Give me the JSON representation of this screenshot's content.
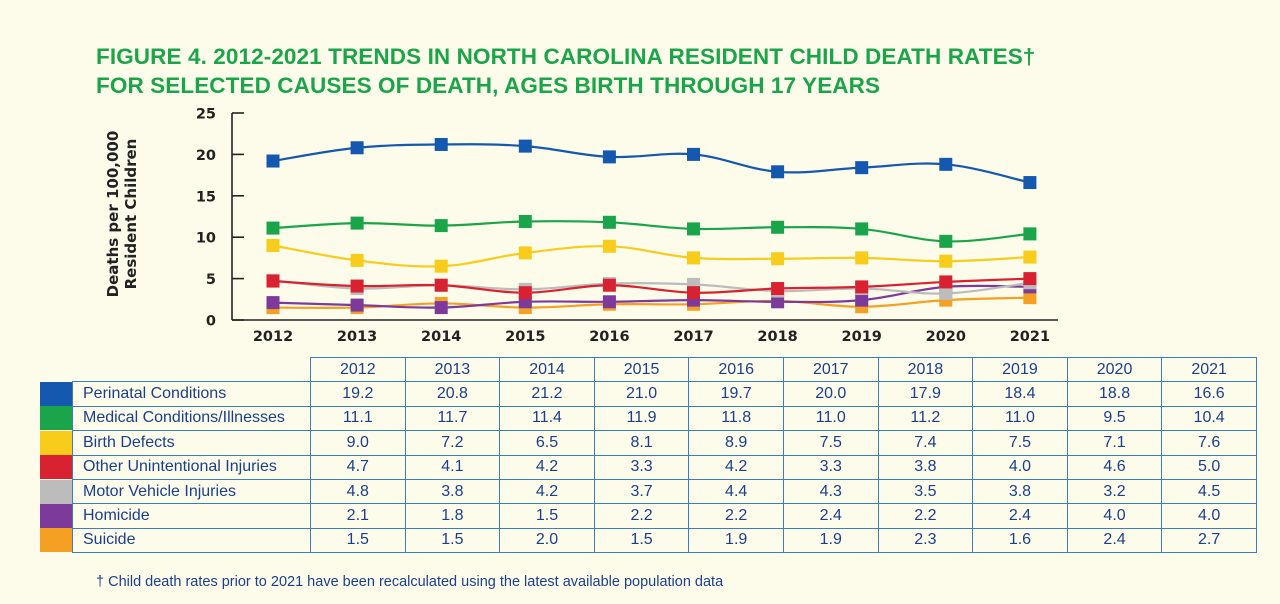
{
  "title_lines": [
    "FIGURE 4. 2012-2021 TRENDS IN NORTH CAROLINA RESIDENT CHILD DEATH RATES†",
    "FOR SELECTED CAUSES OF DEATH, AGES BIRTH THROUGH 17 YEARS"
  ],
  "footnote": "† Child death rates prior to 2021 have been recalculated using the latest available population data",
  "chart_data": {
    "type": "line",
    "ylabel": "Deaths per 100,000 Resident Children",
    "ylim": [
      0,
      25
    ],
    "yticks": [
      "0",
      "5",
      "10",
      "15",
      "20",
      "25"
    ],
    "x": [
      "2012",
      "2013",
      "2014",
      "2015",
      "2016",
      "2017",
      "2018",
      "2019",
      "2020",
      "2021"
    ],
    "grid": false,
    "series": [
      {
        "name": "Perinatal Conditions",
        "color": "#1558b0",
        "values": [
          19.2,
          20.8,
          21.2,
          21.0,
          19.7,
          20.0,
          17.9,
          18.4,
          18.8,
          16.6
        ],
        "labels": [
          "19.2",
          "20.8",
          "21.2",
          "21.0",
          "19.7",
          "20.0",
          "17.9",
          "18.4",
          "18.8",
          "16.6"
        ]
      },
      {
        "name": "Medical Conditions/Illnesses",
        "color": "#1aa54a",
        "values": [
          11.1,
          11.7,
          11.4,
          11.9,
          11.8,
          11.0,
          11.2,
          11.0,
          9.5,
          10.4
        ],
        "labels": [
          "11.1",
          "11.7",
          "11.4",
          "11.9",
          "11.8",
          "11.0",
          "11.2",
          "11.0",
          "9.5",
          "10.4"
        ]
      },
      {
        "name": "Birth Defects",
        "color": "#f8cc1b",
        "values": [
          9.0,
          7.2,
          6.5,
          8.1,
          8.9,
          7.5,
          7.4,
          7.5,
          7.1,
          7.6
        ],
        "labels": [
          "9.0",
          "7.2",
          "6.5",
          "8.1",
          "8.9",
          "7.5",
          "7.4",
          "7.5",
          "7.1",
          "7.6"
        ]
      },
      {
        "name": "Other Unintentional Injuries",
        "color": "#d92231",
        "values": [
          4.7,
          4.1,
          4.2,
          3.3,
          4.2,
          3.3,
          3.8,
          4.0,
          4.6,
          5.0
        ],
        "labels": [
          "4.7",
          "4.1",
          "4.2",
          "3.3",
          "4.2",
          "3.3",
          "3.8",
          "4.0",
          "4.6",
          "5.0"
        ]
      },
      {
        "name": "Motor Vehicle Injuries",
        "color": "#bcbcbc",
        "values": [
          4.8,
          3.8,
          4.2,
          3.7,
          4.4,
          4.3,
          3.5,
          3.8,
          3.2,
          4.5
        ],
        "labels": [
          "4.8",
          "3.8",
          "4.2",
          "3.7",
          "4.4",
          "4.3",
          "3.5",
          "3.8",
          "3.2",
          "4.5"
        ]
      },
      {
        "name": "Homicide",
        "color": "#7c3b9b",
        "values": [
          2.1,
          1.8,
          1.5,
          2.2,
          2.2,
          2.4,
          2.2,
          2.4,
          4.0,
          4.0
        ],
        "labels": [
          "2.1",
          "1.8",
          "1.5",
          "2.2",
          "2.2",
          "2.4",
          "2.2",
          "2.4",
          "4.0",
          "4.0"
        ]
      },
      {
        "name": "Suicide",
        "color": "#f5a023",
        "values": [
          1.5,
          1.5,
          2.0,
          1.5,
          1.9,
          1.9,
          2.3,
          1.6,
          2.4,
          2.7
        ],
        "labels": [
          "1.5",
          "1.5",
          "2.0",
          "1.5",
          "1.9",
          "1.9",
          "2.3",
          "1.6",
          "2.4",
          "2.7"
        ]
      }
    ]
  }
}
